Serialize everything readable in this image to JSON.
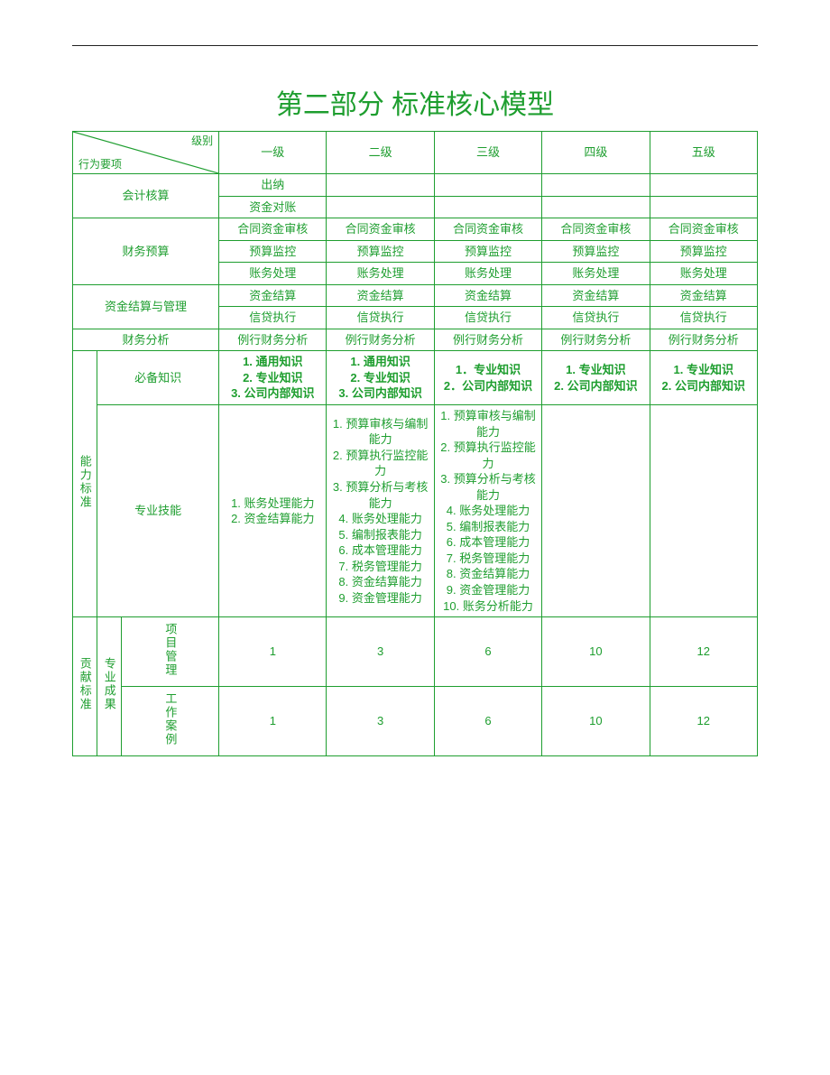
{
  "colors": {
    "accent": "#1e9e2f",
    "rule": "#222222",
    "background": "#ffffff"
  },
  "title": "第二部分 标准核心模型",
  "header": {
    "diag_top": "级别",
    "diag_bottom": "行为要项",
    "levels": [
      "一级",
      "二级",
      "三级",
      "四级",
      "五级"
    ]
  },
  "sections": {
    "accounting": {
      "label": "会计核算",
      "rows": [
        {
          "l1": "出纳",
          "l2": "",
          "l3": "",
          "l4": "",
          "l5": ""
        },
        {
          "l1": "资金对账",
          "l2": "",
          "l3": "",
          "l4": "",
          "l5": ""
        }
      ]
    },
    "budget": {
      "label": "财务预算",
      "rows": [
        {
          "l1": "合同资金审核",
          "l2": "合同资金审核",
          "l3": "合同资金审核",
          "l4": "合同资金审核",
          "l5": "合同资金审核"
        },
        {
          "l1": "预算监控",
          "l2": "预算监控",
          "l3": "预算监控",
          "l4": "预算监控",
          "l5": "预算监控"
        },
        {
          "l1": "账务处理",
          "l2": "账务处理",
          "l3": "账务处理",
          "l4": "账务处理",
          "l5": "账务处理"
        }
      ]
    },
    "settlement": {
      "label": "资金结算与管理",
      "rows": [
        {
          "l1": "资金结算",
          "l2": "资金结算",
          "l3": "资金结算",
          "l4": "资金结算",
          "l5": "资金结算"
        },
        {
          "l1": "信贷执行",
          "l2": "信贷执行",
          "l3": "信贷执行",
          "l4": "信贷执行",
          "l5": "信贷执行"
        }
      ]
    },
    "analysis": {
      "label": "财务分析",
      "rows": [
        {
          "l1": "例行财务分析",
          "l2": "例行财务分析",
          "l3": "例行财务分析",
          "l4": "例行财务分析",
          "l5": "例行财务分析"
        }
      ]
    },
    "ability": {
      "label": "能力标准",
      "knowledge": {
        "label": "必备知识",
        "l1": "1. 通用知识\n2. 专业知识\n3. 公司内部知识",
        "l2": "1. 通用知识\n2. 专业知识\n3. 公司内部知识",
        "l3": "1．专业知识\n2．公司内部知识",
        "l4": "1. 专业知识\n2. 公司内部知识",
        "l5": "1. 专业知识\n2. 公司内部知识"
      },
      "skill": {
        "label": "专业技能",
        "l1": "1. 账务处理能力\n2. 资金结算能力",
        "l2": "1. 预算审核与编制能力\n2. 预算执行监控能力\n3. 预算分析与考核能力\n4. 账务处理能力\n5. 编制报表能力\n6. 成本管理能力\n7. 税务管理能力\n8. 资金结算能力\n9. 资金管理能力",
        "l3": "1. 预算审核与编制能力\n2. 预算执行监控能力\n3. 预算分析与考核能力\n4. 账务处理能力\n5. 编制报表能力\n6. 成本管理能力\n7. 税务管理能力\n8. 资金结算能力\n9. 资金管理能力\n10. 账务分析能力",
        "l4": "",
        "l5": ""
      }
    },
    "contribution": {
      "label": "贡献标准",
      "sub_label": "专业成果",
      "pm": {
        "label": "项目管理",
        "l1": "1",
        "l2": "3",
        "l3": "6",
        "l4": "10",
        "l5": "12"
      },
      "case": {
        "label": "工作案例",
        "l1": "1",
        "l2": "3",
        "l3": "6",
        "l4": "10",
        "l5": "12"
      }
    }
  }
}
